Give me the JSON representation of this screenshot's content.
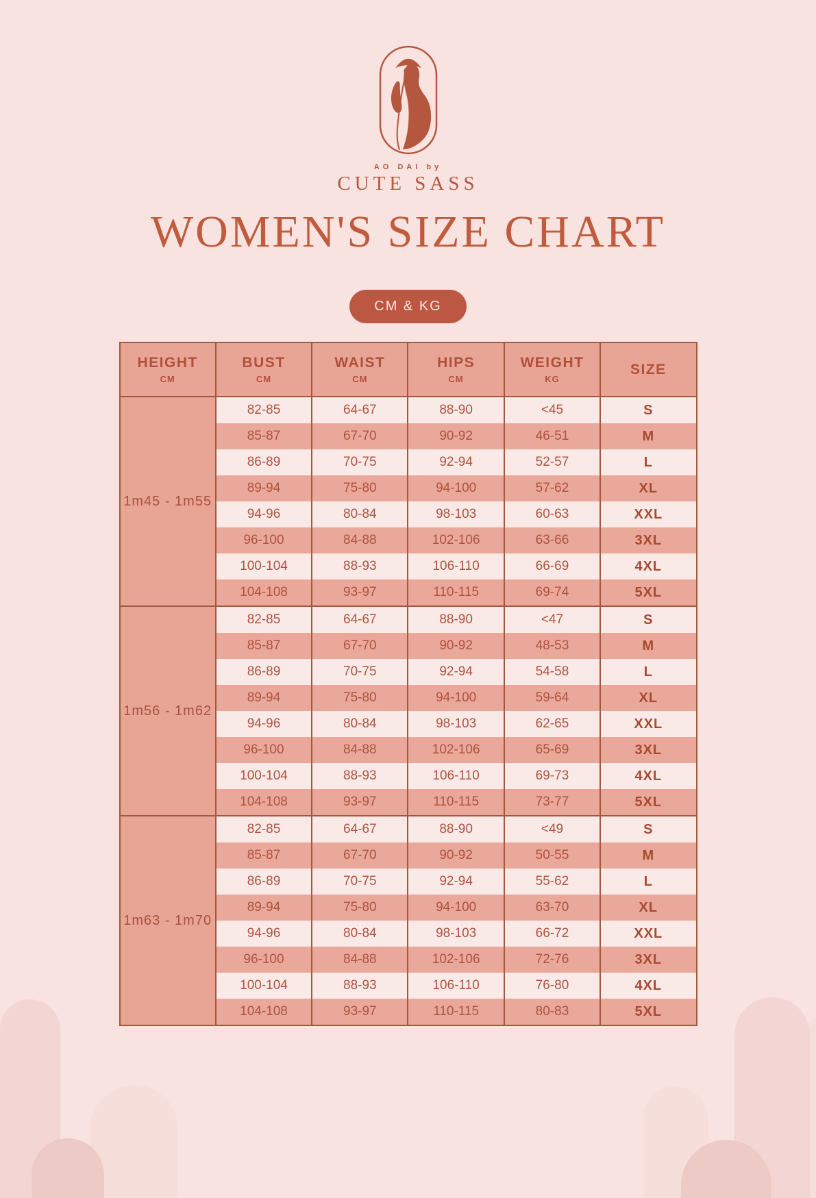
{
  "brand": {
    "logo_icon": "ao-dai-woman-icon",
    "subtitle": "AO DAI by",
    "name": "CUTE SASS"
  },
  "page_title": "WOMEN'S SIZE CHART",
  "units_badge": "CM & KG",
  "colors": {
    "background": "#f8e3e1",
    "accent_terracotta": "#bc5742",
    "table_header_bg": "#e8a595",
    "row_dark_bg": "#e9a899",
    "row_light_bg": "#faeae7",
    "table_border": "#a2573f",
    "text": "#ad5340"
  },
  "table": {
    "columns": [
      {
        "label": "HEIGHT",
        "unit": "CM"
      },
      {
        "label": "BUST",
        "unit": "CM"
      },
      {
        "label": "WAIST",
        "unit": "CM"
      },
      {
        "label": "HIPS",
        "unit": "CM"
      },
      {
        "label": "WEIGHT",
        "unit": "KG"
      },
      {
        "label": "SIZE",
        "unit": ""
      }
    ],
    "groups": [
      {
        "height": "1m45 - 1m55",
        "rows": [
          {
            "bust": "82-85",
            "waist": "64-67",
            "hips": "88-90",
            "weight": "<45",
            "size": "S"
          },
          {
            "bust": "85-87",
            "waist": "67-70",
            "hips": "90-92",
            "weight": "46-51",
            "size": "M"
          },
          {
            "bust": "86-89",
            "waist": "70-75",
            "hips": "92-94",
            "weight": "52-57",
            "size": "L"
          },
          {
            "bust": "89-94",
            "waist": "75-80",
            "hips": "94-100",
            "weight": "57-62",
            "size": "XL"
          },
          {
            "bust": "94-96",
            "waist": "80-84",
            "hips": "98-103",
            "weight": "60-63",
            "size": "XXL"
          },
          {
            "bust": "96-100",
            "waist": "84-88",
            "hips": "102-106",
            "weight": "63-66",
            "size": "3XL"
          },
          {
            "bust": "100-104",
            "waist": "88-93",
            "hips": "106-110",
            "weight": "66-69",
            "size": "4XL"
          },
          {
            "bust": "104-108",
            "waist": "93-97",
            "hips": "110-115",
            "weight": "69-74",
            "size": "5XL"
          }
        ]
      },
      {
        "height": "1m56 - 1m62",
        "rows": [
          {
            "bust": "82-85",
            "waist": "64-67",
            "hips": "88-90",
            "weight": "<47",
            "size": "S"
          },
          {
            "bust": "85-87",
            "waist": "67-70",
            "hips": "90-92",
            "weight": "48-53",
            "size": "M"
          },
          {
            "bust": "86-89",
            "waist": "70-75",
            "hips": "92-94",
            "weight": "54-58",
            "size": "L"
          },
          {
            "bust": "89-94",
            "waist": "75-80",
            "hips": "94-100",
            "weight": "59-64",
            "size": "XL"
          },
          {
            "bust": "94-96",
            "waist": "80-84",
            "hips": "98-103",
            "weight": "62-65",
            "size": "XXL"
          },
          {
            "bust": "96-100",
            "waist": "84-88",
            "hips": "102-106",
            "weight": "65-69",
            "size": "3XL"
          },
          {
            "bust": "100-104",
            "waist": "88-93",
            "hips": "106-110",
            "weight": "69-73",
            "size": "4XL"
          },
          {
            "bust": "104-108",
            "waist": "93-97",
            "hips": "110-115",
            "weight": "73-77",
            "size": "5XL"
          }
        ]
      },
      {
        "height": "1m63 - 1m70",
        "rows": [
          {
            "bust": "82-85",
            "waist": "64-67",
            "hips": "88-90",
            "weight": "<49",
            "size": "S"
          },
          {
            "bust": "85-87",
            "waist": "67-70",
            "hips": "90-92",
            "weight": "50-55",
            "size": "M"
          },
          {
            "bust": "86-89",
            "waist": "70-75",
            "hips": "92-94",
            "weight": "55-62",
            "size": "L"
          },
          {
            "bust": "89-94",
            "waist": "75-80",
            "hips": "94-100",
            "weight": "63-70",
            "size": "XL"
          },
          {
            "bust": "94-96",
            "waist": "80-84",
            "hips": "98-103",
            "weight": "66-72",
            "size": "XXL"
          },
          {
            "bust": "96-100",
            "waist": "84-88",
            "hips": "102-106",
            "weight": "72-76",
            "size": "3XL"
          },
          {
            "bust": "100-104",
            "waist": "88-93",
            "hips": "106-110",
            "weight": "76-80",
            "size": "4XL"
          },
          {
            "bust": "104-108",
            "waist": "93-97",
            "hips": "110-115",
            "weight": "80-83",
            "size": "5XL"
          }
        ]
      }
    ]
  }
}
